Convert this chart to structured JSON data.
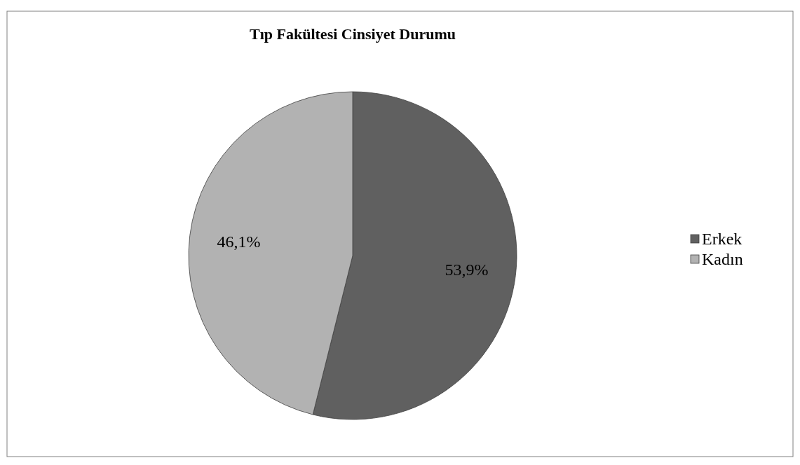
{
  "chart_data": {
    "type": "pie",
    "title": "Tıp Fakültesi Cinsiyet Durumu",
    "categories": [
      "Erkek",
      "Kadın"
    ],
    "values": [
      53.9,
      46.1
    ],
    "colors": [
      "#606060",
      "#b2b2b2"
    ],
    "value_labels": [
      "53,9%",
      "46,1%"
    ],
    "legend": "right"
  }
}
